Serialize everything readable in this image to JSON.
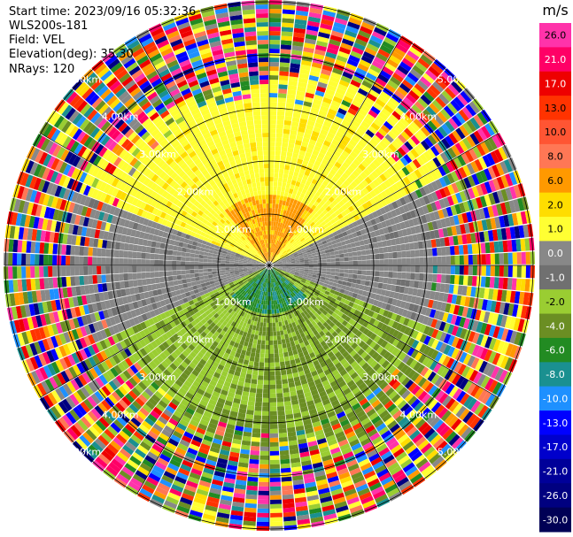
{
  "header": {
    "start_time": "Start time: 2023/09/16 05:32:36",
    "instrument": "WLS200s-181",
    "field": "Field: VEL",
    "elevation": "Elevation(deg): 35.30",
    "nrays": "NRays: 120"
  },
  "chart_data": {
    "type": "heatmap",
    "projection": "polar-ppi",
    "field": "VEL",
    "nrays": 120,
    "elevation_deg": 35.3,
    "range_rings_km": [
      1.0,
      2.0,
      3.0,
      4.0,
      5.0
    ],
    "ring_labels": [
      "1.00km",
      "2.00km",
      "3.00km",
      "4.00km",
      "5.00km"
    ],
    "spoke_angles_deg": [
      0,
      30,
      60,
      90,
      120,
      150,
      180,
      210,
      240,
      270,
      300,
      330
    ],
    "max_range_km": 5.0,
    "colorbar": {
      "unit": "m/s",
      "ticks": [
        "26.0",
        "21.0",
        "17.0",
        "13.0",
        "10.0",
        "8.0",
        "6.0",
        "2.0",
        "1.0",
        "0.0",
        "-1.0",
        "-2.0",
        "-4.0",
        "-6.0",
        "-8.0",
        "-10.0",
        "-13.0",
        "-17.0",
        "-21.0",
        "-26.0",
        "-30.0"
      ],
      "colors": [
        "#ff33aa",
        "#ff0066",
        "#ee0000",
        "#ff3300",
        "#ff5533",
        "#ff7755",
        "#ff9900",
        "#ffdd00",
        "#ffff33",
        "#888888",
        "#707070",
        "#9acd32",
        "#6b8e23",
        "#228b22",
        "#1a9090",
        "#1e90ff",
        "#0000ff",
        "#0000cc",
        "#000099",
        "#000080",
        "#000055"
      ]
    }
  }
}
